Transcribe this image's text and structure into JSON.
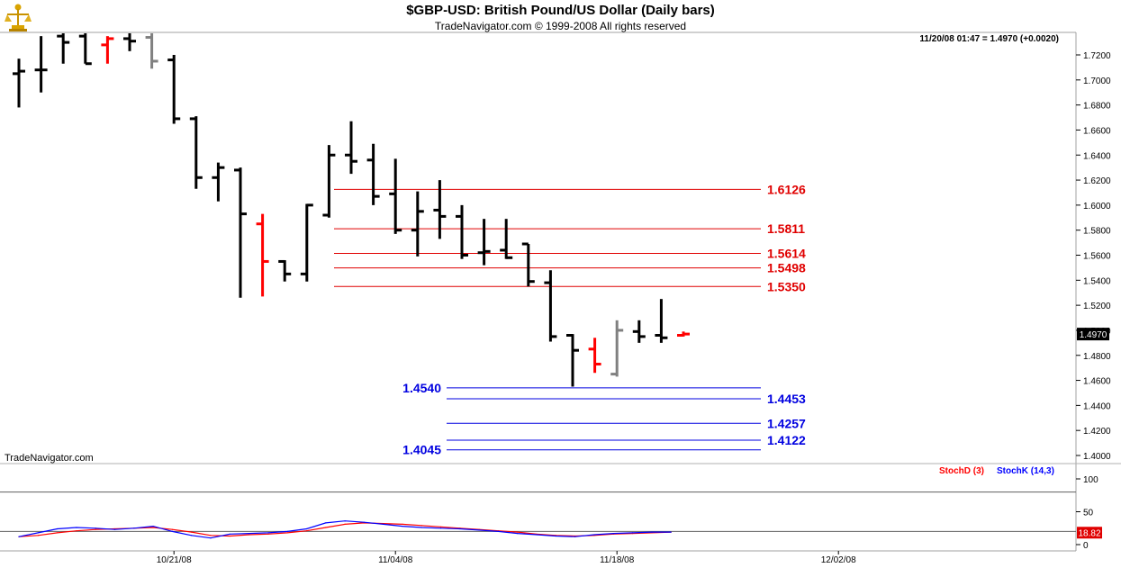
{
  "header": {
    "title": "$GBP-USD:  British Pound/US Dollar  (Daily bars)",
    "copyright": "TradeNavigator.com © 1999-2008 All rights reserved",
    "quote": "11/20/08 01:47 = 1.4970 (+0.0020)",
    "watermark": "TradeNavigator.com"
  },
  "colors": {
    "up_bar": "#000000",
    "down_bar": "#ff0000",
    "neutral_bar": "#808080",
    "resistance": "#e00000",
    "support": "#0000e0",
    "stoch_d": "#ff0000",
    "stoch_k": "#0000ff",
    "last_price_box": "#000000"
  },
  "chart_data": [
    {
      "type": "ohlc",
      "name": "price",
      "ylim": [
        1.39,
        1.73
      ],
      "y_ticks": [
        "1.7200",
        "1.7000",
        "1.6800",
        "1.6600",
        "1.6400",
        "1.6200",
        "1.6000",
        "1.5800",
        "1.5600",
        "1.5400",
        "1.5200",
        "1.5000",
        "1.4800",
        "1.4600",
        "1.4400",
        "1.4200",
        "1.4000"
      ],
      "x_ticks": [
        {
          "label": "10/21/08",
          "index": 7
        },
        {
          "label": "11/04/08",
          "index": 17
        },
        {
          "label": "11/18/08",
          "index": 27
        },
        {
          "label": "12/02/08",
          "index": 37
        }
      ],
      "bars": [
        {
          "o": 1.705,
          "h": 1.717,
          "l": 1.678,
          "c": 1.707,
          "color": "black"
        },
        {
          "o": 1.708,
          "h": 1.735,
          "l": 1.69,
          "c": 1.708,
          "color": "black"
        },
        {
          "o": 1.735,
          "h": 1.74,
          "l": 1.713,
          "c": 1.73,
          "color": "black"
        },
        {
          "o": 1.735,
          "h": 1.74,
          "l": 1.713,
          "c": 1.713,
          "color": "black"
        },
        {
          "o": 1.728,
          "h": 1.735,
          "l": 1.713,
          "c": 1.733,
          "color": "red"
        },
        {
          "o": 1.733,
          "h": 1.739,
          "l": 1.723,
          "c": 1.731,
          "color": "black"
        },
        {
          "o": 1.734,
          "h": 1.738,
          "l": 1.709,
          "c": 1.715,
          "color": "gray"
        },
        {
          "o": 1.716,
          "h": 1.72,
          "l": 1.665,
          "c": 1.669,
          "color": "black"
        },
        {
          "o": 1.669,
          "h": 1.671,
          "l": 1.613,
          "c": 1.622,
          "color": "black"
        },
        {
          "o": 1.622,
          "h": 1.634,
          "l": 1.603,
          "c": 1.63,
          "color": "black"
        },
        {
          "o": 1.628,
          "h": 1.63,
          "l": 1.526,
          "c": 1.593,
          "color": "black"
        },
        {
          "o": 1.585,
          "h": 1.593,
          "l": 1.527,
          "c": 1.555,
          "color": "red"
        },
        {
          "o": 1.555,
          "h": 1.556,
          "l": 1.539,
          "c": 1.545,
          "color": "black"
        },
        {
          "o": 1.545,
          "h": 1.601,
          "l": 1.539,
          "c": 1.6,
          "color": "black"
        },
        {
          "o": 1.592,
          "h": 1.648,
          "l": 1.59,
          "c": 1.64,
          "color": "black"
        },
        {
          "o": 1.64,
          "h": 1.667,
          "l": 1.625,
          "c": 1.635,
          "color": "black"
        },
        {
          "o": 1.636,
          "h": 1.649,
          "l": 1.6,
          "c": 1.607,
          "color": "black"
        },
        {
          "o": 1.609,
          "h": 1.637,
          "l": 1.577,
          "c": 1.58,
          "color": "black"
        },
        {
          "o": 1.58,
          "h": 1.611,
          "l": 1.559,
          "c": 1.595,
          "color": "black"
        },
        {
          "o": 1.596,
          "h": 1.62,
          "l": 1.573,
          "c": 1.591,
          "color": "black"
        },
        {
          "o": 1.591,
          "h": 1.6,
          "l": 1.557,
          "c": 1.56,
          "color": "black"
        },
        {
          "o": 1.562,
          "h": 1.589,
          "l": 1.552,
          "c": 1.563,
          "color": "black"
        },
        {
          "o": 1.564,
          "h": 1.589,
          "l": 1.557,
          "c": 1.558,
          "color": "black"
        },
        {
          "o": 1.569,
          "h": 1.569,
          "l": 1.535,
          "c": 1.539,
          "color": "black"
        },
        {
          "o": 1.538,
          "h": 1.548,
          "l": 1.491,
          "c": 1.495,
          "color": "black"
        },
        {
          "o": 1.496,
          "h": 1.497,
          "l": 1.455,
          "c": 1.484,
          "color": "black"
        },
        {
          "o": 1.485,
          "h": 1.494,
          "l": 1.466,
          "c": 1.473,
          "color": "red"
        },
        {
          "o": 1.465,
          "h": 1.508,
          "l": 1.463,
          "c": 1.5,
          "color": "gray"
        },
        {
          "o": 1.499,
          "h": 1.508,
          "l": 1.49,
          "c": 1.495,
          "color": "black"
        },
        {
          "o": 1.496,
          "h": 1.525,
          "l": 1.49,
          "c": 1.494,
          "color": "black"
        },
        {
          "o": 1.496,
          "h": 1.499,
          "l": 1.495,
          "c": 1.497,
          "color": "red"
        }
      ],
      "last_price": "1.4970",
      "resistance_lines": [
        {
          "value": 1.6126,
          "label": "1.6126"
        },
        {
          "value": 1.5811,
          "label": "1.5811"
        },
        {
          "value": 1.5614,
          "label": "1.5614"
        },
        {
          "value": 1.5498,
          "label": "1.5498"
        },
        {
          "value": 1.535,
          "label": "1.5350"
        }
      ],
      "support_lines": [
        {
          "value": 1.454,
          "label": "1.4540",
          "label_side": "left"
        },
        {
          "value": 1.4453,
          "label": "1.4453",
          "label_side": "right"
        },
        {
          "value": 1.4257,
          "label": "1.4257",
          "label_side": "right"
        },
        {
          "value": 1.4122,
          "label": "1.4122",
          "label_side": "right"
        },
        {
          "value": 1.4045,
          "label": "1.4045",
          "label_side": "left"
        }
      ]
    },
    {
      "type": "line",
      "name": "stochastic",
      "ylim": [
        -10,
        130
      ],
      "y_ticks": [
        "100",
        "50",
        "0"
      ],
      "reference_lines": [
        80,
        20
      ],
      "last_value": "18.82",
      "series": [
        {
          "name": "StochD (3)",
          "color": "red",
          "values": [
            12,
            14,
            18,
            21,
            23,
            24,
            25,
            26,
            23,
            19,
            14,
            13,
            15,
            16,
            18,
            21,
            26,
            31,
            33,
            32,
            31,
            29,
            27,
            25,
            23,
            21,
            19,
            16,
            14,
            13,
            14,
            16,
            17,
            18,
            19
          ]
        },
        {
          "name": "StochK (14,3)",
          "color": "blue",
          "values": [
            12,
            18,
            24,
            26,
            25,
            23,
            25,
            28,
            20,
            14,
            10,
            16,
            17,
            18,
            20,
            24,
            33,
            36,
            34,
            31,
            28,
            26,
            25,
            24,
            22,
            20,
            17,
            15,
            13,
            12,
            15,
            17,
            18,
            19,
            19
          ]
        }
      ]
    }
  ]
}
